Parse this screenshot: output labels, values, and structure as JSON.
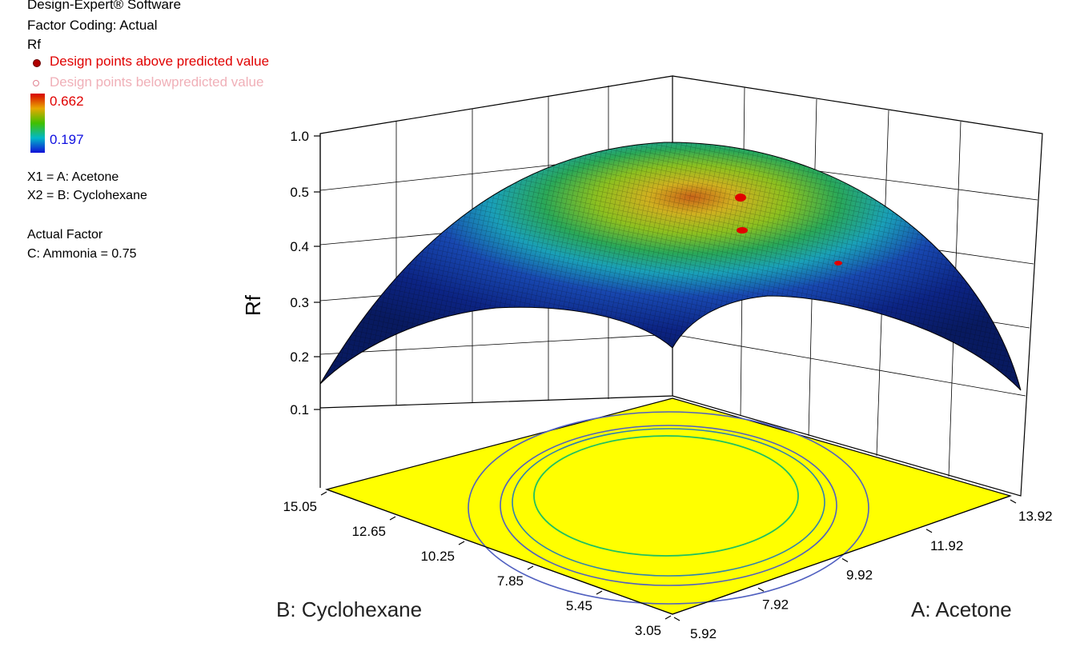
{
  "header": {
    "software": "Design-Expert® Software",
    "coding": "Factor Coding: Actual",
    "response": "Rf",
    "legend_above": "Design points above predicted value",
    "legend_below": "Design points belowpredicted value",
    "color_high": "0.662",
    "color_low": "0.197",
    "x1_def": "X1 = A: Acetone",
    "x2_def": "X2 = B: Cyclohexane",
    "actual_factor_heading": "Actual Factor",
    "actual_factor_value": "C: Ammonia = 0.75"
  },
  "colors": {
    "above_point": "#e00000",
    "below_point": "#f0b0b8",
    "high_label": "#e00000",
    "low_label": "#1010e0",
    "contour_floor": "#ffff00"
  },
  "chart_data": {
    "type": "surface",
    "z_label": "Rf",
    "x_label": "A: Acetone",
    "y_label": "B: Cyclohexane",
    "z_ticks": [
      "0.1",
      "0.2",
      "0.3",
      "0.4",
      "0.5",
      "1.0"
    ],
    "x_ticks": [
      "5.92",
      "7.92",
      "9.92",
      "11.92",
      "13.92"
    ],
    "y_ticks": [
      "3.05",
      "5.45",
      "7.85",
      "10.25",
      "12.65",
      "15.05"
    ],
    "color_range": [
      0.197,
      0.662
    ],
    "design_points": [
      {
        "type": "above"
      },
      {
        "type": "above"
      },
      {
        "type": "above"
      }
    ]
  }
}
